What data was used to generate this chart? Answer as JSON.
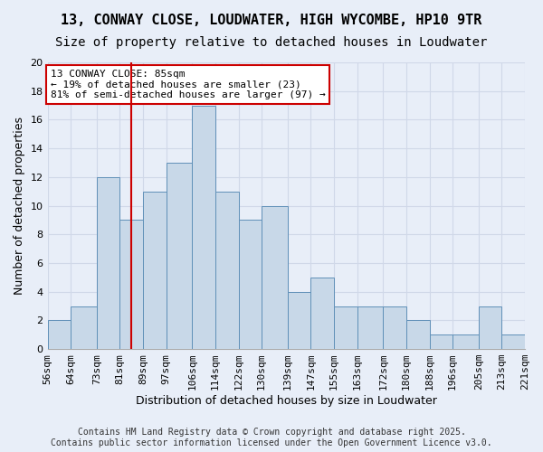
{
  "title_line1": "13, CONWAY CLOSE, LOUDWATER, HIGH WYCOMBE, HP10 9TR",
  "title_line2": "Size of property relative to detached houses in Loudwater",
  "xlabel": "Distribution of detached houses by size in Loudwater",
  "ylabel": "Number of detached properties",
  "bin_edges": [
    56,
    64,
    73,
    81,
    89,
    97,
    106,
    114,
    122,
    130,
    139,
    147,
    155,
    163,
    172,
    180,
    188,
    196,
    205,
    213,
    221
  ],
  "counts": [
    2,
    3,
    12,
    9,
    11,
    13,
    17,
    11,
    9,
    10,
    4,
    5,
    3,
    3,
    3,
    2,
    1,
    1,
    3,
    1
  ],
  "tick_labels": [
    "56sqm",
    "64sqm",
    "73sqm",
    "81sqm",
    "89sqm",
    "97sqm",
    "106sqm",
    "114sqm",
    "122sqm",
    "130sqm",
    "139sqm",
    "147sqm",
    "155sqm",
    "163sqm",
    "172sqm",
    "180sqm",
    "188sqm",
    "196sqm",
    "205sqm",
    "213sqm",
    "221sqm"
  ],
  "bar_color": "#c8d8e8",
  "bar_edge_color": "#6090b8",
  "bar_edge_width": 0.7,
  "property_line_x": 85,
  "property_line_color": "#cc0000",
  "annotation_text": "13 CONWAY CLOSE: 85sqm\n← 19% of detached houses are smaller (23)\n81% of semi-detached houses are larger (97) →",
  "annotation_box_edge_color": "#cc0000",
  "annotation_box_face_color": "#ffffff",
  "ylim": [
    0,
    20
  ],
  "yticks": [
    0,
    2,
    4,
    6,
    8,
    10,
    12,
    14,
    16,
    18,
    20
  ],
  "grid_color": "#d0d8e8",
  "background_color": "#e8eef8",
  "footer_text": "Contains HM Land Registry data © Crown copyright and database right 2025.\nContains public sector information licensed under the Open Government Licence v3.0.",
  "title_fontsize": 11,
  "subtitle_fontsize": 10,
  "axis_label_fontsize": 9,
  "tick_fontsize": 8,
  "annotation_fontsize": 8,
  "footer_fontsize": 7
}
